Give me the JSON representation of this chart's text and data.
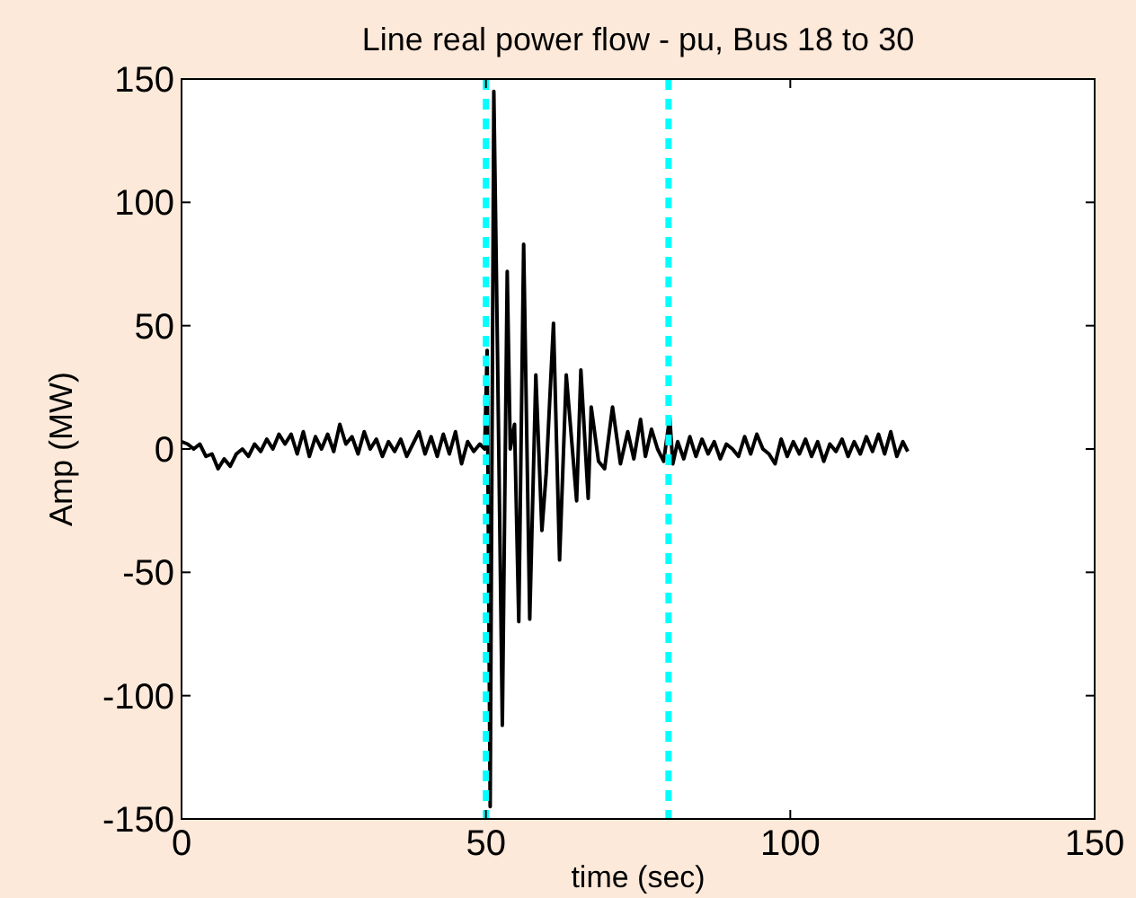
{
  "chart_data": {
    "type": "line",
    "title": "Line real power flow - pu, Bus 18 to 30",
    "xlabel": "time (sec)",
    "ylabel": "Amp (MW)",
    "x": [
      0,
      1,
      2,
      3,
      4,
      5,
      6,
      7,
      8,
      9,
      10,
      11,
      12,
      13,
      14,
      15,
      16,
      17,
      18,
      19,
      20,
      21,
      22,
      23,
      24,
      25,
      26,
      27,
      28,
      29,
      30,
      31,
      32,
      33,
      34,
      35,
      36,
      37,
      38,
      39,
      40,
      41,
      42,
      43,
      44,
      45,
      46,
      47,
      48,
      49,
      49.8,
      50.2,
      50.7,
      51.3,
      51.9,
      52.7,
      53.5,
      54,
      54.7,
      55.4,
      56.2,
      57.2,
      58.2,
      59.2,
      59.9,
      61.1,
      62.1,
      63.2,
      64.9,
      65.6,
      66.8,
      67.3,
      68.5,
      69.5,
      70.8,
      72.1,
      73.3,
      74.3,
      75.4,
      76.2,
      77.2,
      78.2,
      79.2,
      80.2,
      80.7,
      81.5,
      82.5,
      83.5,
      84.5,
      85.5,
      86.5,
      87.5,
      88.5,
      89.5,
      90.5,
      91.5,
      92.5,
      93.5,
      94.5,
      95.5,
      96.5,
      97.5,
      98.5,
      99.5,
      100.5,
      101.5,
      102.5,
      103.5,
      104.5,
      105.5,
      106.5,
      107.5,
      108.5,
      109.5,
      110.5,
      111.5,
      112.5,
      113.5,
      114.5,
      115.5,
      116.5,
      117.5,
      118.5,
      119.3
    ],
    "series": [
      {
        "color": "#000000",
        "values": [
          3,
          2,
          0,
          2,
          -3,
          -2,
          -8,
          -4,
          -7,
          -2,
          0,
          -3,
          2,
          -1,
          4,
          0,
          6,
          2,
          6,
          -2,
          7,
          -3,
          5,
          0,
          6,
          -1,
          10,
          2,
          5,
          -2,
          7,
          0,
          4,
          -3,
          3,
          -1,
          4,
          -3,
          2,
          7,
          -2,
          5,
          -3,
          6,
          -2,
          7,
          -6,
          3,
          -1,
          2,
          0,
          40,
          -145,
          145,
          40,
          -112,
          72,
          0,
          10,
          -70,
          83,
          -69,
          30,
          -33,
          -10,
          51,
          -45,
          30,
          -21,
          32,
          -20,
          17,
          -5,
          -8,
          17,
          -6,
          7,
          -4,
          12,
          -3,
          8,
          0,
          -5,
          13,
          -6,
          3,
          -4,
          5,
          -3,
          4,
          -2,
          3,
          -4,
          2,
          0,
          -3,
          5,
          -2,
          6,
          0,
          -2,
          -6,
          4,
          -3,
          3,
          -2,
          4,
          -3,
          3,
          -5,
          2,
          -1,
          4,
          -3,
          3,
          -2,
          5,
          -1,
          6,
          -2,
          7,
          -3,
          3,
          -1
        ]
      }
    ],
    "xlim": [
      0,
      150
    ],
    "xticks": [
      0,
      50,
      100,
      150
    ],
    "ylim": [
      -150,
      150
    ],
    "yticks": [
      -150,
      -100,
      -50,
      0,
      50,
      100,
      150
    ],
    "grid": false,
    "marker": "none",
    "line_style": "solid",
    "ref_lines": [
      {
        "axis": "x",
        "value": 50,
        "color": "#00ffff",
        "line_style": "dashed"
      },
      {
        "axis": "x",
        "value": 80,
        "color": "#00ffff",
        "line_style": "dashed"
      }
    ]
  }
}
